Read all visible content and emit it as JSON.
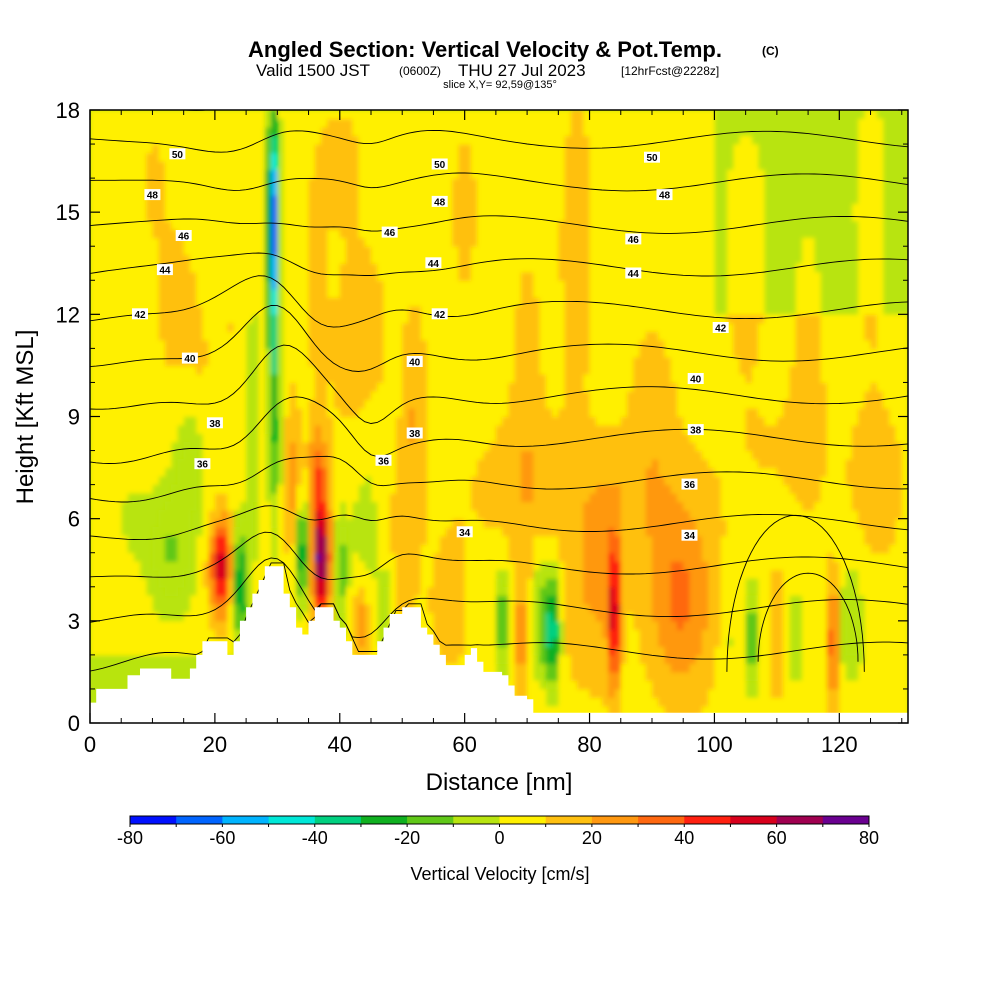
{
  "title": {
    "main": "Angled Section: Vertical Velocity & Pot.Temp.",
    "units": "(C)",
    "valid_time": "Valid 1500 JST",
    "utc_time": "(0600Z)",
    "date": "THU 27 Jul 2023",
    "forecast": "[12hrFcst@2228z]",
    "slice": "slice X,Y= 92,59@135°"
  },
  "chart_data": {
    "type": "heatmap",
    "xlabel": "Distance [nm]",
    "ylabel": "Height [Kft MSL]",
    "xlim": [
      0,
      131
    ],
    "ylim": [
      0,
      18
    ],
    "x_ticks": [
      0,
      20,
      40,
      60,
      80,
      100,
      120
    ],
    "y_ticks": [
      0,
      3,
      6,
      9,
      12,
      15,
      18
    ],
    "colorbar": {
      "label": "Vertical Velocity [cm/s]",
      "min": -80,
      "max": 80,
      "step": 10,
      "tick_labels": [
        "-80",
        "-60",
        "-40",
        "-20",
        "0",
        "20",
        "40",
        "60",
        "80"
      ],
      "colors": [
        "#0010ff",
        "#0064ff",
        "#00b4ff",
        "#00e8d8",
        "#00d080",
        "#10b020",
        "#60c818",
        "#b8e410",
        "#fff000",
        "#ffc010",
        "#ff9810",
        "#ff6810",
        "#ff2010",
        "#d8001c",
        "#a00050",
        "#6a0090"
      ]
    },
    "terrain": [
      [
        0,
        0.6
      ],
      [
        1,
        1.0
      ],
      [
        5,
        1.0
      ],
      [
        6,
        1.4
      ],
      [
        8,
        1.6
      ],
      [
        12,
        1.6
      ],
      [
        13,
        1.3
      ],
      [
        15,
        1.3
      ],
      [
        16,
        1.6
      ],
      [
        17,
        2.0
      ],
      [
        18,
        2.4
      ],
      [
        21,
        2.4
      ],
      [
        22,
        2.0
      ],
      [
        23,
        2.4
      ],
      [
        24,
        3.0
      ],
      [
        25,
        3.4
      ],
      [
        26,
        3.8
      ],
      [
        27,
        4.2
      ],
      [
        28,
        4.6
      ],
      [
        30,
        4.6
      ],
      [
        31,
        3.8
      ],
      [
        32,
        3.4
      ],
      [
        33,
        2.8
      ],
      [
        34,
        2.6
      ],
      [
        35,
        3.0
      ],
      [
        36,
        3.4
      ],
      [
        38,
        3.4
      ],
      [
        39,
        3.0
      ],
      [
        40,
        2.8
      ],
      [
        41,
        2.4
      ],
      [
        42,
        2.0
      ],
      [
        45,
        2.0
      ],
      [
        46,
        2.4
      ],
      [
        47,
        2.8
      ],
      [
        48,
        3.2
      ],
      [
        50,
        3.4
      ],
      [
        52,
        3.4
      ],
      [
        53,
        2.8
      ],
      [
        54,
        2.6
      ],
      [
        55,
        2.3
      ],
      [
        56,
        2.0
      ],
      [
        57,
        1.7
      ],
      [
        59,
        1.7
      ],
      [
        60,
        2.0
      ],
      [
        61,
        2.2
      ],
      [
        62,
        1.8
      ],
      [
        63,
        1.5
      ],
      [
        65,
        1.5
      ],
      [
        66,
        1.4
      ],
      [
        67,
        1.1
      ],
      [
        68,
        0.8
      ],
      [
        70,
        0.7
      ],
      [
        71,
        0.3
      ],
      [
        131,
        0.3
      ]
    ],
    "contour_levels": [
      31,
      32,
      33,
      34,
      35,
      36,
      37,
      38,
      39,
      40,
      41,
      42,
      43,
      44,
      45,
      46,
      47,
      48,
      49,
      50,
      51
    ],
    "contour_labels": [
      {
        "level": 50,
        "x": 14,
        "y": 16.7
      },
      {
        "level": 50,
        "x": 56,
        "y": 16.4
      },
      {
        "level": 50,
        "x": 90,
        "y": 16.6
      },
      {
        "level": 48,
        "x": 10,
        "y": 15.5
      },
      {
        "level": 48,
        "x": 56,
        "y": 15.3
      },
      {
        "level": 48,
        "x": 92,
        "y": 15.5
      },
      {
        "level": 46,
        "x": 15,
        "y": 14.3
      },
      {
        "level": 46,
        "x": 48,
        "y": 14.4
      },
      {
        "level": 46,
        "x": 87,
        "y": 14.2
      },
      {
        "level": 44,
        "x": 12,
        "y": 13.3
      },
      {
        "level": 44,
        "x": 55,
        "y": 13.5
      },
      {
        "level": 44,
        "x": 87,
        "y": 13.2
      },
      {
        "level": 42,
        "x": 8,
        "y": 12.0
      },
      {
        "level": 42,
        "x": 56,
        "y": 12.0
      },
      {
        "level": 42,
        "x": 101,
        "y": 11.6
      },
      {
        "level": 40,
        "x": 16,
        "y": 10.7
      },
      {
        "level": 40,
        "x": 52,
        "y": 10.6
      },
      {
        "level": 40,
        "x": 97,
        "y": 10.1
      },
      {
        "level": 38,
        "x": 20,
        "y": 8.8
      },
      {
        "level": 38,
        "x": 52,
        "y": 8.5
      },
      {
        "level": 38,
        "x": 97,
        "y": 8.6
      },
      {
        "level": 36,
        "x": 18,
        "y": 7.6
      },
      {
        "level": 36,
        "x": 47,
        "y": 7.7
      },
      {
        "level": 36,
        "x": 96,
        "y": 7.0
      },
      {
        "level": 34,
        "x": 60,
        "y": 5.6
      },
      {
        "level": 34,
        "x": 96,
        "y": 5.5
      }
    ]
  }
}
